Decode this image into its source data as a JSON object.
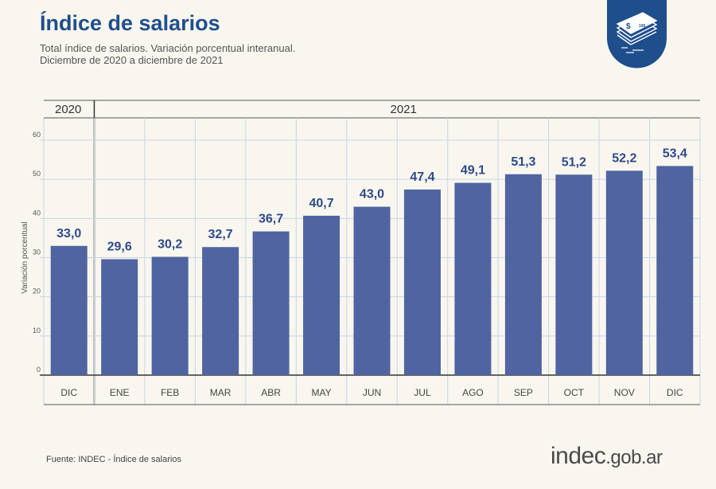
{
  "header": {
    "title": "Índice de salarios",
    "subtitle_line1": "Total índice de salarios. Variación porcentual interanual.",
    "subtitle_line2": "Diciembre de 2020 a diciembre de 2021"
  },
  "footer": {
    "source": "Fuente: INDEC - Índice de salarios",
    "brand_main": "indec",
    "brand_suffix": ".gob.ar"
  },
  "colors": {
    "bar": "#4f64a0",
    "title": "#1f4e8c",
    "badge": "#1f4e8c",
    "background": "#f8f6ef"
  },
  "badge_icon": "money-stack-icon",
  "chart_data": {
    "type": "bar",
    "ylabel": "Variación porcentual",
    "ylim": [
      0,
      60
    ],
    "yticks": [
      0,
      10,
      20,
      30,
      40,
      50,
      60
    ],
    "grid": true,
    "year_groups": [
      {
        "label": "2020",
        "start": 0,
        "end": 0
      },
      {
        "label": "2021",
        "start": 1,
        "end": 12
      }
    ],
    "categories": [
      "DIC",
      "ENE",
      "FEB",
      "MAR",
      "ABR",
      "MAY",
      "JUN",
      "JUL",
      "AGO",
      "SEP",
      "OCT",
      "NOV",
      "DIC"
    ],
    "values": [
      33.0,
      29.6,
      30.2,
      32.7,
      36.7,
      40.7,
      43.0,
      47.4,
      49.1,
      51.3,
      51.2,
      52.2,
      53.4
    ],
    "value_labels": [
      "33,0",
      "29,6",
      "30,2",
      "32,7",
      "36,7",
      "40,7",
      "43,0",
      "47,4",
      "49,1",
      "51,3",
      "51,2",
      "52,2",
      "53,4"
    ]
  }
}
